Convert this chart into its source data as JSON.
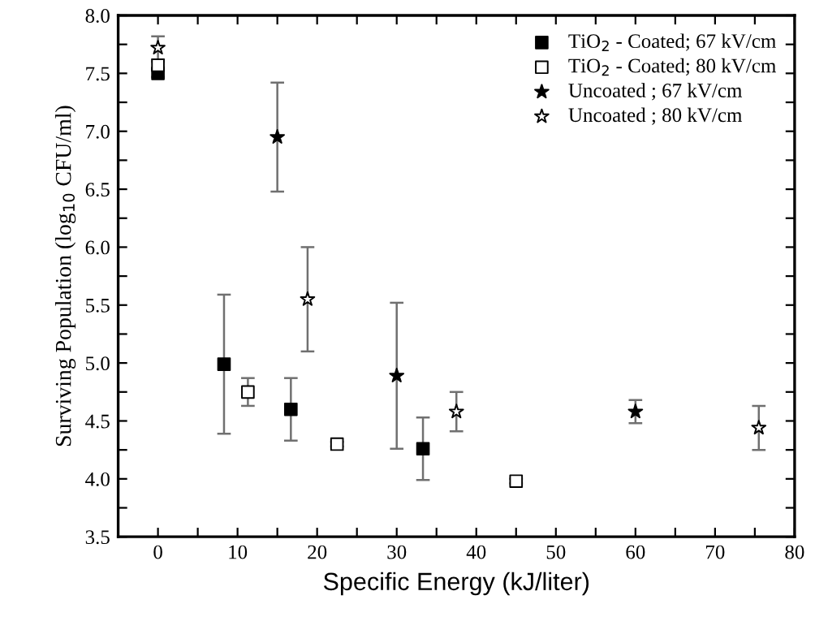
{
  "chart_data": {
    "type": "scatter",
    "xlabel": "Specific Energy (kJ/liter)",
    "ylabel": "Surviving Population (log$_{10}$ CFU/ml)",
    "xlim": [
      -5,
      80
    ],
    "ylim": [
      3.5,
      8.0
    ],
    "xticks": [
      0,
      {
        "value": 5,
        "label": null
      },
      10,
      {
        "value": 15,
        "label": null
      },
      20,
      {
        "value": 25,
        "label": null
      },
      30,
      {
        "value": 35,
        "label": null
      },
      40,
      {
        "value": 45,
        "label": null
      },
      50,
      {
        "value": 55,
        "label": null
      },
      60,
      {
        "value": 65,
        "label": null
      },
      70,
      {
        "value": 75,
        "label": null
      },
      80
    ],
    "yticks": [
      {
        "value": 3.5,
        "label": "3.5"
      },
      {
        "value": 3.75,
        "label": null
      },
      {
        "value": 4.0,
        "label": "4.0"
      },
      {
        "value": 4.25,
        "label": null
      },
      {
        "value": 4.5,
        "label": "4.5"
      },
      {
        "value": 4.75,
        "label": null
      },
      {
        "value": 5.0,
        "label": "5.0"
      },
      {
        "value": 5.25,
        "label": null
      },
      {
        "value": 5.5,
        "label": "5.5"
      },
      {
        "value": 5.75,
        "label": null
      },
      {
        "value": 6.0,
        "label": "6.0"
      },
      {
        "value": 6.25,
        "label": null
      },
      {
        "value": 6.5,
        "label": "6.5"
      },
      {
        "value": 6.75,
        "label": null
      },
      {
        "value": 7.0,
        "label": "7.0"
      },
      {
        "value": 7.25,
        "label": null
      },
      {
        "value": 7.5,
        "label": "7.5"
      },
      {
        "value": 7.75,
        "label": null
      },
      {
        "value": 8.0,
        "label": "8.0"
      }
    ],
    "legend": "top right",
    "grid": false,
    "series": [
      {
        "name": "TiO$_{2}$ - Coated; 67 kV/cm",
        "color": "#000000",
        "marker": "square",
        "x": [
          0,
          8.3,
          16.7,
          33.3
        ],
        "values": [
          7.5,
          4.99,
          4.6,
          4.26
        ],
        "errors": [
          0.03,
          0.6,
          0.27,
          0.27
        ]
      },
      {
        "name": "TiO$_{2}$ - Coated; 80 kV/cm",
        "color": "#ffffff",
        "marker": "square",
        "x": [
          0,
          11.3,
          22.5,
          45
        ],
        "values": [
          7.57,
          4.75,
          4.3,
          3.98
        ],
        "errors": [
          0.03,
          0.12,
          0.02,
          0.02
        ]
      },
      {
        "name": "Uncoated ; 67 kV/cm",
        "color": "#000000",
        "marker": "star",
        "x": [
          15,
          30,
          60
        ],
        "values": [
          6.95,
          4.89,
          4.58
        ],
        "errors": [
          0.47,
          0.63,
          0.1
        ]
      },
      {
        "name": "Uncoated ; 80 kV/cm",
        "color": "#ffffff",
        "marker": "star",
        "x": [
          0,
          18.8,
          37.5,
          75.5
        ],
        "values": [
          7.72,
          5.55,
          4.58,
          4.44
        ],
        "errors": [
          0.1,
          0.45,
          0.17,
          0.19
        ]
      }
    ]
  }
}
